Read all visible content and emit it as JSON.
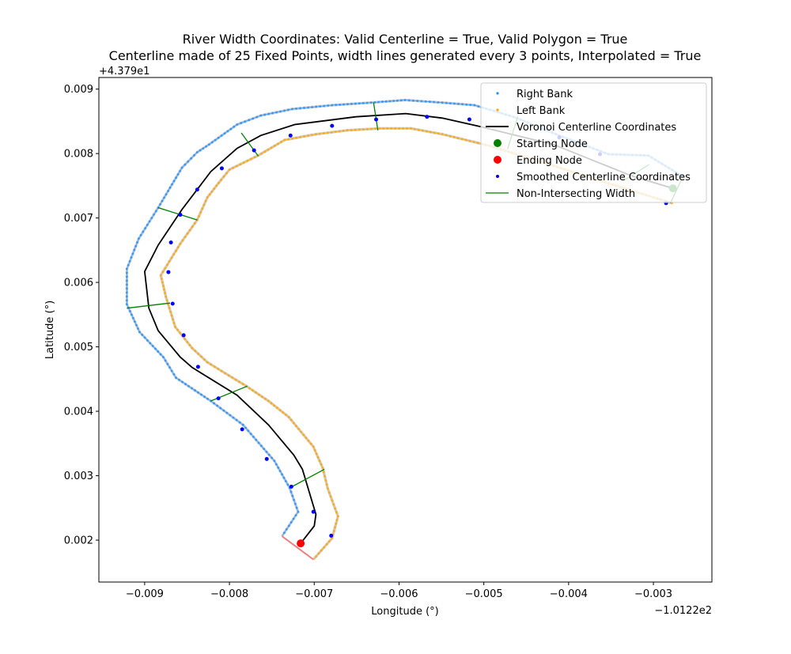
{
  "chart_data": {
    "type": "line",
    "title": "River Width Coordinates: Valid Centerline = True, Valid Polygon = True",
    "subtitle": "Centerline made of 25 Fixed Points, width lines generated every 3 points, Interpolated = True",
    "xlabel": "Longitude (°)",
    "ylabel": "Latitude (°)",
    "x_offset_label": "−1.0122e2",
    "y_offset_label": "+4.379e1",
    "xlim": [
      -0.00954,
      -0.00231
    ],
    "ylim": [
      0.00135,
      0.00918
    ],
    "xticks": [
      -0.009,
      -0.008,
      -0.007,
      -0.006,
      -0.005,
      -0.004,
      -0.003
    ],
    "xtick_labels": [
      "−0.009",
      "−0.008",
      "−0.007",
      "−0.006",
      "−0.005",
      "−0.004",
      "−0.003"
    ],
    "yticks": [
      0.002,
      0.003,
      0.004,
      0.005,
      0.006,
      0.007,
      0.008,
      0.009
    ],
    "ytick_labels": [
      "0.002",
      "0.003",
      "0.004",
      "0.005",
      "0.006",
      "0.007",
      "0.008",
      "0.009"
    ],
    "grid": false,
    "legend_placement": "upper right",
    "colors": {
      "right_bank": "#1e90ff",
      "left_bank": "#ffa500",
      "centerline": "#000000",
      "start": "#008000",
      "end": "#ff0000",
      "smoothed": "#0000ff",
      "width": "#008000",
      "end_width": "#f08080"
    },
    "legend": [
      "Right Bank",
      "Left Bank",
      "Voronoi Centerline Coordinates",
      "Starting Node",
      "Ending Node",
      "Smoothed Centerline Coordinates",
      "Non-Intersecting Width"
    ],
    "right_bank": [
      [
        -0.00266,
        0.00765
      ],
      [
        -0.00306,
        0.00797
      ],
      [
        -0.00353,
        0.00799
      ],
      [
        -0.00411,
        0.00828
      ],
      [
        -0.00465,
        0.00857
      ],
      [
        -0.00511,
        0.00875
      ],
      [
        -0.00549,
        0.00879
      ],
      [
        -0.00593,
        0.00883
      ],
      [
        -0.00633,
        0.00879
      ],
      [
        -0.00679,
        0.00875
      ],
      [
        -0.00726,
        0.00869
      ],
      [
        -0.00763,
        0.00859
      ],
      [
        -0.00791,
        0.00845
      ],
      [
        -0.00824,
        0.00814
      ],
      [
        -0.00838,
        0.00802
      ],
      [
        -0.00856,
        0.00778
      ],
      [
        -0.00884,
        0.00716
      ],
      [
        -0.00907,
        0.00668
      ],
      [
        -0.00921,
        0.00621
      ],
      [
        -0.00921,
        0.00566
      ],
      [
        -0.00906,
        0.00523
      ],
      [
        -0.00878,
        0.00484
      ],
      [
        -0.00863,
        0.00452
      ],
      [
        -0.00822,
        0.00416
      ],
      [
        -0.00784,
        0.00379
      ],
      [
        -0.00747,
        0.00323
      ],
      [
        -0.00729,
        0.00281
      ],
      [
        -0.00719,
        0.00244
      ],
      [
        -0.00738,
        0.00206
      ]
    ],
    "left_bank": [
      [
        -0.00278,
        0.00723
      ],
      [
        -0.00344,
        0.0075
      ],
      [
        -0.00418,
        0.00781
      ],
      [
        -0.00493,
        0.00812
      ],
      [
        -0.00549,
        0.0083
      ],
      [
        -0.00586,
        0.00839
      ],
      [
        -0.00623,
        0.00839
      ],
      [
        -0.00661,
        0.00836
      ],
      [
        -0.00698,
        0.0083
      ],
      [
        -0.00735,
        0.00821
      ],
      [
        -0.00766,
        0.00797
      ],
      [
        -0.008,
        0.00775
      ],
      [
        -0.0081,
        0.00759
      ],
      [
        -0.00826,
        0.00732
      ],
      [
        -0.00838,
        0.00697
      ],
      [
        -0.00858,
        0.0066
      ],
      [
        -0.00881,
        0.00611
      ],
      [
        -0.00875,
        0.00578
      ],
      [
        -0.00864,
        0.00531
      ],
      [
        -0.00844,
        0.00498
      ],
      [
        -0.00826,
        0.00476
      ],
      [
        -0.00805,
        0.00459
      ],
      [
        -0.0078,
        0.00439
      ],
      [
        -0.00754,
        0.00416
      ],
      [
        -0.0073,
        0.00391
      ],
      [
        -0.00701,
        0.00345
      ],
      [
        -0.0069,
        0.00312
      ],
      [
        -0.00684,
        0.0028
      ],
      [
        -0.00672,
        0.00237
      ],
      [
        -0.00679,
        0.00203
      ],
      [
        -0.00701,
        0.0017
      ]
    ],
    "centerline": [
      [
        -0.00277,
        0.00746
      ],
      [
        -0.00325,
        0.00765
      ],
      [
        -0.00418,
        0.00814
      ],
      [
        -0.00505,
        0.00842
      ],
      [
        -0.00549,
        0.00855
      ],
      [
        -0.00592,
        0.00862
      ],
      [
        -0.00651,
        0.00857
      ],
      [
        -0.00723,
        0.00845
      ],
      [
        -0.00763,
        0.00828
      ],
      [
        -0.00791,
        0.00808
      ],
      [
        -0.00822,
        0.00772
      ],
      [
        -0.00856,
        0.00713
      ],
      [
        -0.00884,
        0.00658
      ],
      [
        -0.009,
        0.00617
      ],
      [
        -0.00895,
        0.0056
      ],
      [
        -0.00884,
        0.00525
      ],
      [
        -0.00858,
        0.00484
      ],
      [
        -0.00844,
        0.00468
      ],
      [
        -0.00791,
        0.00425
      ],
      [
        -0.00754,
        0.00379
      ],
      [
        -0.00724,
        0.00332
      ],
      [
        -0.00714,
        0.0031
      ],
      [
        -0.00698,
        0.0024
      ],
      [
        -0.007,
        0.00222
      ],
      [
        -0.00716,
        0.00195
      ]
    ],
    "smoothed": [
      [
        -0.00285,
        0.00723
      ],
      [
        -0.00363,
        0.00799
      ],
      [
        -0.00411,
        0.00825
      ],
      [
        -0.00517,
        0.00853
      ],
      [
        -0.00567,
        0.00857
      ],
      [
        -0.00627,
        0.00853
      ],
      [
        -0.00679,
        0.00843
      ],
      [
        -0.00728,
        0.00828
      ],
      [
        -0.00771,
        0.00805
      ],
      [
        -0.00809,
        0.00777
      ],
      [
        -0.00838,
        0.00744
      ],
      [
        -0.00858,
        0.00705
      ],
      [
        -0.00869,
        0.00662
      ],
      [
        -0.00872,
        0.00616
      ],
      [
        -0.00867,
        0.00567
      ],
      [
        -0.00854,
        0.00518
      ],
      [
        -0.00837,
        0.00469
      ],
      [
        -0.00813,
        0.0042
      ],
      [
        -0.00785,
        0.00372
      ],
      [
        -0.00756,
        0.00326
      ],
      [
        -0.00727,
        0.00283
      ],
      [
        -0.00701,
        0.00244
      ],
      [
        -0.0068,
        0.00207
      ]
    ],
    "width_lines": [
      [
        [
          -0.0063,
          0.00879
        ],
        [
          -0.00625,
          0.00836
        ]
      ],
      [
        [
          -0.00786,
          0.00832
        ],
        [
          -0.00766,
          0.00796
        ]
      ],
      [
        [
          -0.00884,
          0.00716
        ],
        [
          -0.00838,
          0.00697
        ]
      ],
      [
        [
          -0.00921,
          0.0056
        ],
        [
          -0.0087,
          0.00568
        ]
      ],
      [
        [
          -0.00822,
          0.00416
        ],
        [
          -0.00779,
          0.00439
        ]
      ],
      [
        [
          -0.00729,
          0.00281
        ],
        [
          -0.00688,
          0.0031
        ]
      ],
      [
        [
          -0.0046,
          0.00857
        ],
        [
          -0.00472,
          0.00807
        ]
      ],
      [
        [
          -0.00305,
          0.00783
        ],
        [
          -0.00334,
          0.00759
        ]
      ],
      [
        [
          -0.00266,
          0.00762
        ],
        [
          -0.0028,
          0.00723
        ]
      ]
    ],
    "end_width": [
      [
        -0.00738,
        0.00206
      ],
      [
        -0.00701,
        0.0017
      ]
    ],
    "starting_node": [
      -0.00277,
      0.00746
    ],
    "ending_node": [
      -0.00716,
      0.00195
    ]
  }
}
